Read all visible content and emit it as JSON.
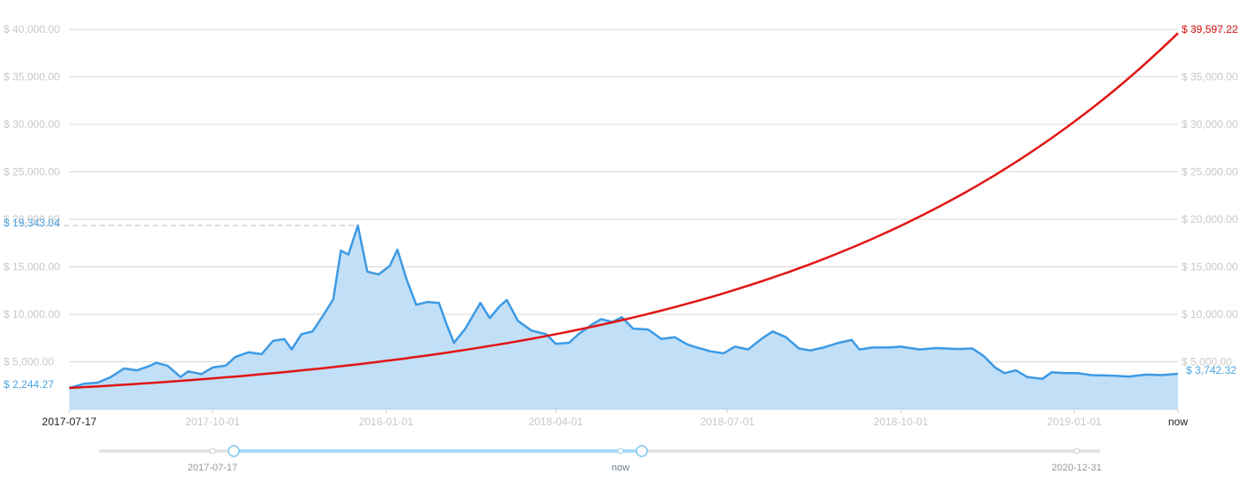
{
  "chart_data": {
    "type": "area",
    "title": "",
    "xlabel": "",
    "ylabel": "",
    "ylim": [
      0,
      40000
    ],
    "grid": true,
    "y_ticks": [
      "$ 5,000.00",
      "$ 10,000.00",
      "$ 15,000.00",
      "$ 20,000.00",
      "$ 25,000.00",
      "$ 30,000.00",
      "$ 35,000.00",
      "$ 40,000.00"
    ],
    "y_tick_values": [
      5000,
      10000,
      15000,
      20000,
      25000,
      30000,
      35000,
      40000
    ],
    "x_ticks": [
      {
        "label": "2017-07-17",
        "date": "2017-07-17"
      },
      {
        "label": "2017-10-01",
        "date": "2017-10-01"
      },
      {
        "label": "2018-01-01",
        "date": "2018-01-01"
      },
      {
        "label": "2018-04-01",
        "date": "2018-04-01"
      },
      {
        "label": "2018-07-01",
        "date": "2018-07-01"
      },
      {
        "label": "2018-10-01",
        "date": "2018-10-01"
      },
      {
        "label": "2019-01-01",
        "date": "2019-01-01"
      },
      {
        "label": "now",
        "date": "2019-02-25"
      }
    ],
    "annotations": {
      "start_value": "$ 2,244.27",
      "peak_value": "$ 19,343.04",
      "current_value": "$ 3,742.32",
      "projection_value": "$ 39,597.22"
    },
    "series": [
      {
        "type": "area",
        "color": "#3d9ae4",
        "fill": "#c1dff7",
        "points": [
          [
            "2017-07-17",
            2244
          ],
          [
            "2017-07-25",
            2700
          ],
          [
            "2017-08-01",
            2800
          ],
          [
            "2017-08-08",
            3400
          ],
          [
            "2017-08-15",
            4300
          ],
          [
            "2017-08-22",
            4100
          ],
          [
            "2017-08-29",
            4600
          ],
          [
            "2017-09-01",
            4900
          ],
          [
            "2017-09-07",
            4600
          ],
          [
            "2017-09-14",
            3400
          ],
          [
            "2017-09-18",
            4000
          ],
          [
            "2017-09-25",
            3700
          ],
          [
            "2017-10-01",
            4400
          ],
          [
            "2017-10-08",
            4600
          ],
          [
            "2017-10-13",
            5500
          ],
          [
            "2017-10-20",
            6000
          ],
          [
            "2017-10-27",
            5800
          ],
          [
            "2017-11-02",
            7200
          ],
          [
            "2017-11-08",
            7400
          ],
          [
            "2017-11-12",
            6300
          ],
          [
            "2017-11-17",
            7900
          ],
          [
            "2017-11-23",
            8200
          ],
          [
            "2017-11-29",
            10000
          ],
          [
            "2017-12-04",
            11600
          ],
          [
            "2017-12-08",
            16700
          ],
          [
            "2017-12-12",
            16300
          ],
          [
            "2017-12-17",
            19343
          ],
          [
            "2017-12-22",
            14500
          ],
          [
            "2017-12-28",
            14200
          ],
          [
            "2018-01-03",
            15100
          ],
          [
            "2018-01-07",
            16800
          ],
          [
            "2018-01-12",
            13600
          ],
          [
            "2018-01-17",
            11000
          ],
          [
            "2018-01-23",
            11300
          ],
          [
            "2018-01-29",
            11200
          ],
          [
            "2018-02-02",
            9000
          ],
          [
            "2018-02-06",
            7000
          ],
          [
            "2018-02-12",
            8500
          ],
          [
            "2018-02-20",
            11200
          ],
          [
            "2018-02-25",
            9600
          ],
          [
            "2018-03-02",
            10800
          ],
          [
            "2018-03-06",
            11500
          ],
          [
            "2018-03-12",
            9300
          ],
          [
            "2018-03-19",
            8300
          ],
          [
            "2018-03-27",
            7900
          ],
          [
            "2018-04-01",
            6900
          ],
          [
            "2018-04-08",
            7000
          ],
          [
            "2018-04-13",
            7900
          ],
          [
            "2018-04-20",
            8900
          ],
          [
            "2018-04-25",
            9500
          ],
          [
            "2018-05-01",
            9200
          ],
          [
            "2018-05-06",
            9700
          ],
          [
            "2018-05-12",
            8500
          ],
          [
            "2018-05-20",
            8400
          ],
          [
            "2018-05-27",
            7400
          ],
          [
            "2018-06-03",
            7600
          ],
          [
            "2018-06-10",
            6800
          ],
          [
            "2018-06-15",
            6500
          ],
          [
            "2018-06-22",
            6100
          ],
          [
            "2018-06-29",
            5900
          ],
          [
            "2018-07-05",
            6600
          ],
          [
            "2018-07-12",
            6300
          ],
          [
            "2018-07-19",
            7400
          ],
          [
            "2018-07-25",
            8200
          ],
          [
            "2018-08-01",
            7600
          ],
          [
            "2018-08-08",
            6400
          ],
          [
            "2018-08-14",
            6200
          ],
          [
            "2018-08-21",
            6500
          ],
          [
            "2018-08-29",
            7000
          ],
          [
            "2018-09-05",
            7300
          ],
          [
            "2018-09-09",
            6300
          ],
          [
            "2018-09-16",
            6500
          ],
          [
            "2018-09-25",
            6500
          ],
          [
            "2018-10-01",
            6600
          ],
          [
            "2018-10-11",
            6300
          ],
          [
            "2018-10-20",
            6450
          ],
          [
            "2018-10-31",
            6350
          ],
          [
            "2018-11-08",
            6400
          ],
          [
            "2018-11-14",
            5600
          ],
          [
            "2018-11-20",
            4400
          ],
          [
            "2018-11-25",
            3800
          ],
          [
            "2018-12-01",
            4100
          ],
          [
            "2018-12-07",
            3400
          ],
          [
            "2018-12-15",
            3200
          ],
          [
            "2018-12-20",
            3900
          ],
          [
            "2018-12-27",
            3800
          ],
          [
            "2019-01-03",
            3800
          ],
          [
            "2019-01-10",
            3600
          ],
          [
            "2019-01-20",
            3550
          ],
          [
            "2019-01-30",
            3450
          ],
          [
            "2019-02-08",
            3650
          ],
          [
            "2019-02-16",
            3600
          ],
          [
            "2019-02-25",
            3742
          ]
        ]
      },
      {
        "type": "line",
        "color": "#e11515",
        "start": [
          "2017-07-17",
          2244.27
        ],
        "end": [
          "2019-02-25",
          39597.22
        ],
        "curve": "exponential"
      }
    ]
  },
  "range_slider": {
    "start_label": "2017-07-17",
    "mid_label": "now",
    "end_label": "2020-12-31",
    "track_color": "#e6e6e6",
    "selected_color": "#a9dcf7",
    "selected_from": 0.13,
    "selected_to": 0.54
  }
}
